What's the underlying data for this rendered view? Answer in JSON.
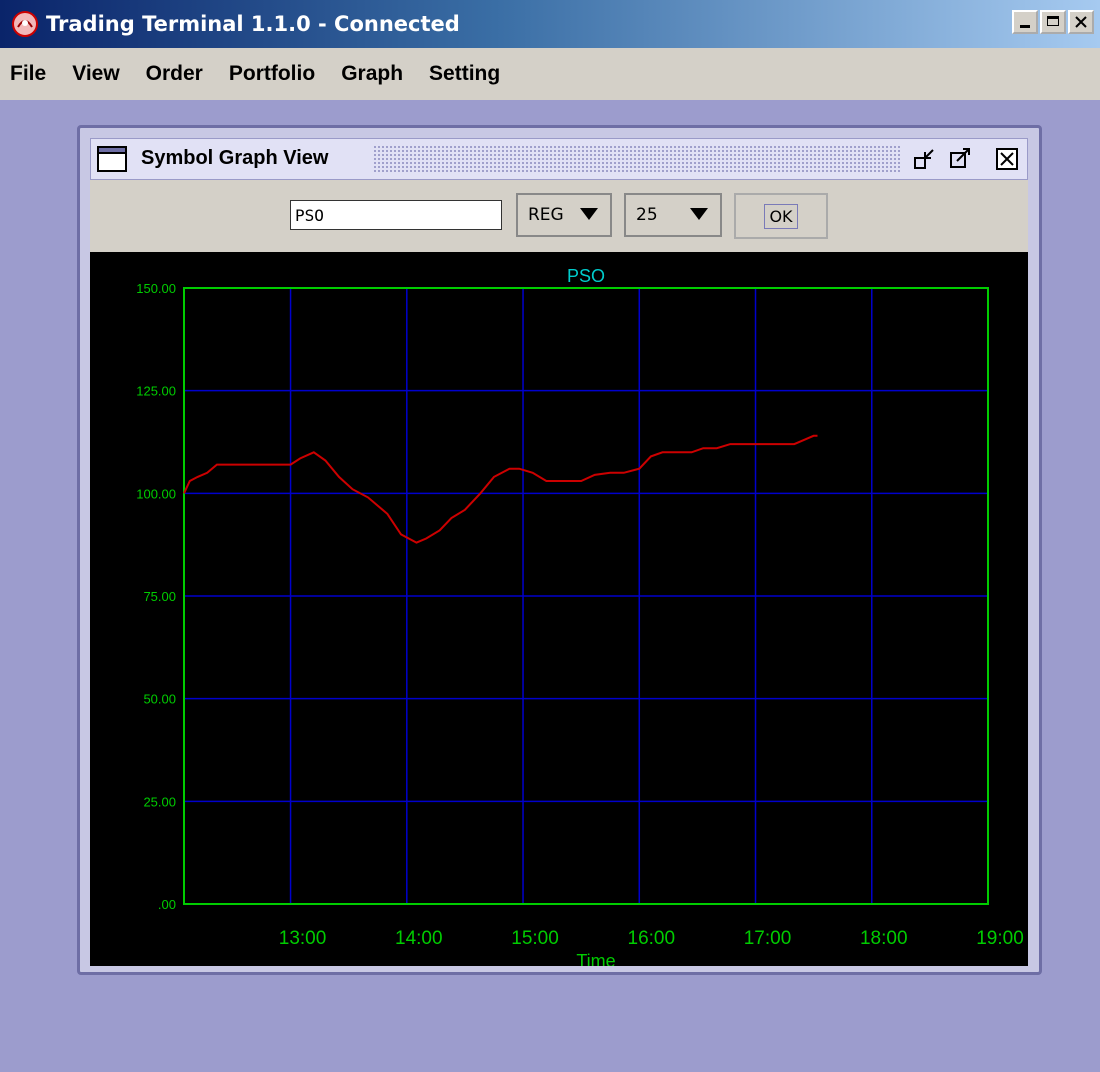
{
  "window": {
    "title": "Trading Terminal 1.1.0 - Connected"
  },
  "menu": [
    "File",
    "View",
    "Order",
    "Portfolio",
    "Graph",
    "Setting"
  ],
  "graph_window": {
    "title": "Symbol Graph View"
  },
  "toolbar": {
    "symbol_value": "PSO",
    "market_value": "REG",
    "count_value": "25",
    "ok_label": "OK"
  },
  "colors": {
    "desktop": "#9c9ccd",
    "plot_bg": "#000000",
    "grid": "#0000cc",
    "axis": "#00cc00",
    "line": "#cc0000",
    "title": "#00cccc"
  },
  "chart_data": {
    "type": "line",
    "title": "PSO",
    "xlabel": "Time",
    "ylabel": "",
    "ylim": [
      0,
      150
    ],
    "yticks": [
      ".00",
      "25.00",
      "50.00",
      "75.00",
      "100.00",
      "125.00",
      "150.00"
    ],
    "xticks": [
      "13:00",
      "14:00",
      "15:00",
      "16:00",
      "17:00",
      "18:00",
      "19:00"
    ],
    "xlim": [
      "12:05",
      "19:00"
    ],
    "grid": true,
    "series": [
      {
        "x": [
          "12:05",
          "12:08",
          "12:12",
          "12:17",
          "12:22",
          "12:30",
          "12:40",
          "12:55",
          "13:00",
          "13:05",
          "13:12",
          "13:18",
          "13:25",
          "13:32",
          "13:40",
          "13:50",
          "13:57",
          "14:05",
          "14:10",
          "14:17",
          "14:23",
          "14:30",
          "14:38",
          "14:45",
          "14:53",
          "14:58",
          "15:05",
          "15:12",
          "15:20",
          "15:30",
          "15:37",
          "15:45",
          "15:52",
          "16:00",
          "16:06",
          "16:12",
          "16:20",
          "16:27",
          "16:33",
          "16:40",
          "16:47",
          "16:55",
          "17:05",
          "17:15",
          "17:20",
          "17:25",
          "17:30",
          "17:32"
        ],
        "values": [
          100,
          103,
          104,
          105,
          107,
          107,
          107,
          107,
          107,
          108.5,
          110,
          108,
          104,
          101,
          99,
          95,
          90,
          88,
          89,
          91,
          94,
          96,
          100,
          104,
          106,
          106,
          105,
          103,
          103,
          103,
          104.5,
          105,
          105,
          106,
          109,
          110,
          110,
          110,
          111,
          111,
          112,
          112,
          112,
          112,
          112,
          113,
          114,
          114
        ]
      }
    ]
  }
}
